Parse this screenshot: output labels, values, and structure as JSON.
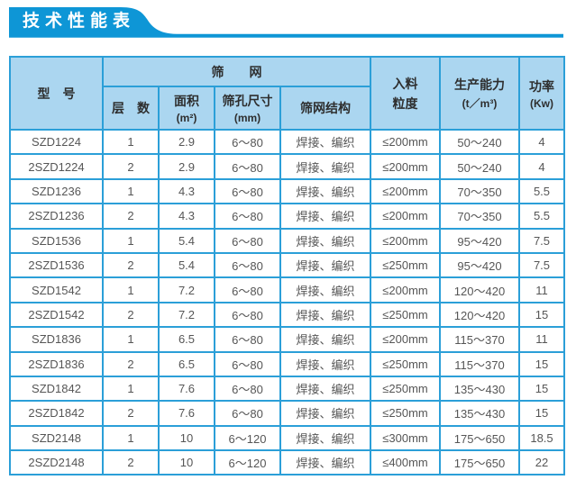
{
  "page": {
    "title": "技术性能表",
    "accent_blue": "#0e96d6",
    "header_fill": "#abd6f0",
    "border_blue": "#2b9fd8"
  },
  "table": {
    "headers": {
      "model": "型　号",
      "screen_group": "筛　　网",
      "layers": "层　数",
      "area_line1": "面积",
      "area_line2": "(m²)",
      "mesh_size_line1": "筛孔尺寸",
      "mesh_size_line2": "(mm)",
      "structure": "筛网结构",
      "feed_line1": "入料",
      "feed_line2": "粒度",
      "capacity_line1": "生产能力",
      "capacity_line2": "(t／m³)",
      "power_line1": "功率",
      "power_line2": "(Kw)"
    },
    "rows": [
      [
        "SZD1224",
        "1",
        "2.9",
        "6～80",
        "焊接、编织",
        "≤200mm",
        "50～240",
        "4"
      ],
      [
        "2SZD1224",
        "2",
        "2.9",
        "6～80",
        "焊接、编织",
        "≤200mm",
        "50～240",
        "4"
      ],
      [
        "SZD1236",
        "1",
        "4.3",
        "6～80",
        "焊接、编织",
        "≤200mm",
        "70～350",
        "5.5"
      ],
      [
        "2SZD1236",
        "2",
        "4.3",
        "6～80",
        "焊接、编织",
        "≤200mm",
        "70～350",
        "5.5"
      ],
      [
        "SZD1536",
        "1",
        "5.4",
        "6～80",
        "焊接、编织",
        "≤200mm",
        "95～420",
        "7.5"
      ],
      [
        "2SZD1536",
        "2",
        "5.4",
        "6～80",
        "焊接、编织",
        "≤250mm",
        "95～420",
        "7.5"
      ],
      [
        "SZD1542",
        "1",
        "7.2",
        "6～80",
        "焊接、编织",
        "≤200mm",
        "120～420",
        "11"
      ],
      [
        "2SZD1542",
        "2",
        "7.2",
        "6～80",
        "焊接、编织",
        "≤250mm",
        "120～420",
        "15"
      ],
      [
        "SZD1836",
        "1",
        "6.5",
        "6～80",
        "焊接、编织",
        "≤200mm",
        "115～370",
        "11"
      ],
      [
        "2SZD1836",
        "2",
        "6.5",
        "6～80",
        "焊接、编织",
        "≤250mm",
        "115～370",
        "15"
      ],
      [
        "SZD1842",
        "1",
        "7.6",
        "6～80",
        "焊接、编织",
        "≤250mm",
        "135～430",
        "15"
      ],
      [
        "2SZD1842",
        "2",
        "7.6",
        "6～80",
        "焊接、编织",
        "≤250mm",
        "135～430",
        "15"
      ],
      [
        "SZD2148",
        "1",
        "10",
        "6～120",
        "焊接、编织",
        "≤300mm",
        "175～650",
        "18.5"
      ],
      [
        "2SZD2148",
        "2",
        "10",
        "6～120",
        "焊接、编织",
        "≤400mm",
        "175～650",
        "22"
      ]
    ]
  }
}
